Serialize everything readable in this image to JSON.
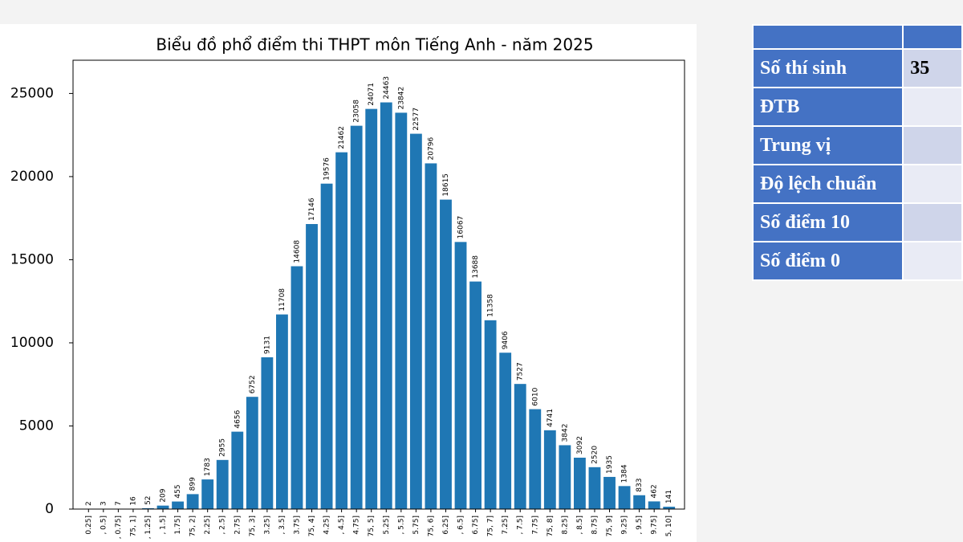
{
  "chart_data": {
    "type": "bar",
    "title": "Biểu đồ phổ điểm thi THPT môn Tiếng Anh - năm 2025",
    "categories": [
      "0.25]",
      ", 0.5]",
      ", 0.75]",
      "75, 1]",
      ", 1.25]",
      ", 1.5]",
      "1.75]",
      "75, 2]",
      "2.25]",
      ", 2.5]",
      "2.75]",
      "75, 3]",
      "3.25]",
      ", 3.5]",
      "3.75]",
      "75, 4]",
      "4.25]",
      ", 4.5]",
      "4.75]",
      "75, 5]",
      "5.25]",
      ", 5.5]",
      "5.75]",
      "75, 6]",
      "6.25]",
      ", 6.5]",
      "6.75]",
      "75, 7]",
      "7.25]",
      ", 7.5]",
      "7.75]",
      "75, 8]",
      "8.25]",
      ", 8.5]",
      "8.75]",
      "75, 9]",
      "9.25]",
      ", 9.5]",
      "9.75]",
      "5, 10]"
    ],
    "values": [
      2,
      3,
      7,
      16,
      52,
      209,
      455,
      899,
      1783,
      2955,
      4656,
      6752,
      9131,
      11708,
      14608,
      17146,
      19576,
      21462,
      23058,
      24071,
      24463,
      23842,
      22577,
      20796,
      18615,
      16067,
      13688,
      11358,
      9406,
      7527,
      6010,
      4741,
      3842,
      3092,
      2520,
      1935,
      1384,
      833,
      462,
      141
    ],
    "color": "#1f77b4",
    "ylim": [
      0,
      27000
    ],
    "yticks": [
      0,
      5000,
      10000,
      15000,
      20000,
      25000
    ]
  },
  "table": {
    "rows": [
      [
        "Số thí sinh",
        "35"
      ],
      [
        "ĐTB",
        ""
      ],
      [
        "Trung vị",
        ""
      ],
      [
        "Độ lệch chuẩn",
        ""
      ],
      [
        "Số điểm 10",
        ""
      ],
      [
        "Số điểm 0",
        ""
      ]
    ]
  }
}
